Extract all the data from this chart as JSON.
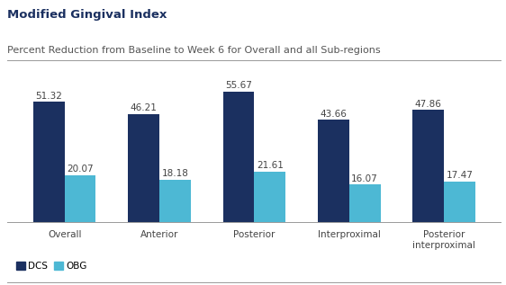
{
  "title": "Modified Gingival Index",
  "subtitle": "Percent Reduction from Baseline to Week 6 for Overall and all Sub-regions",
  "categories": [
    "Overall",
    "Anterior",
    "Posterior",
    "Interproximal",
    "Posterior\ninterproximal"
  ],
  "dcs_values": [
    51.32,
    46.21,
    55.67,
    43.66,
    47.86
  ],
  "obg_values": [
    20.07,
    18.18,
    21.61,
    16.07,
    17.47
  ],
  "dcs_color": "#1b3060",
  "obg_color": "#4db8d4",
  "bar_width": 0.33,
  "ylim": [
    0,
    68
  ],
  "legend_labels": [
    "DCS",
    "OBG"
  ],
  "title_fontsize": 9.5,
  "subtitle_fontsize": 8,
  "tick_fontsize": 7.5,
  "value_fontsize": 7.5,
  "background_color": "#ffffff",
  "title_color": "#1b3060",
  "subtitle_color": "#555555",
  "axis_color": "#999999"
}
